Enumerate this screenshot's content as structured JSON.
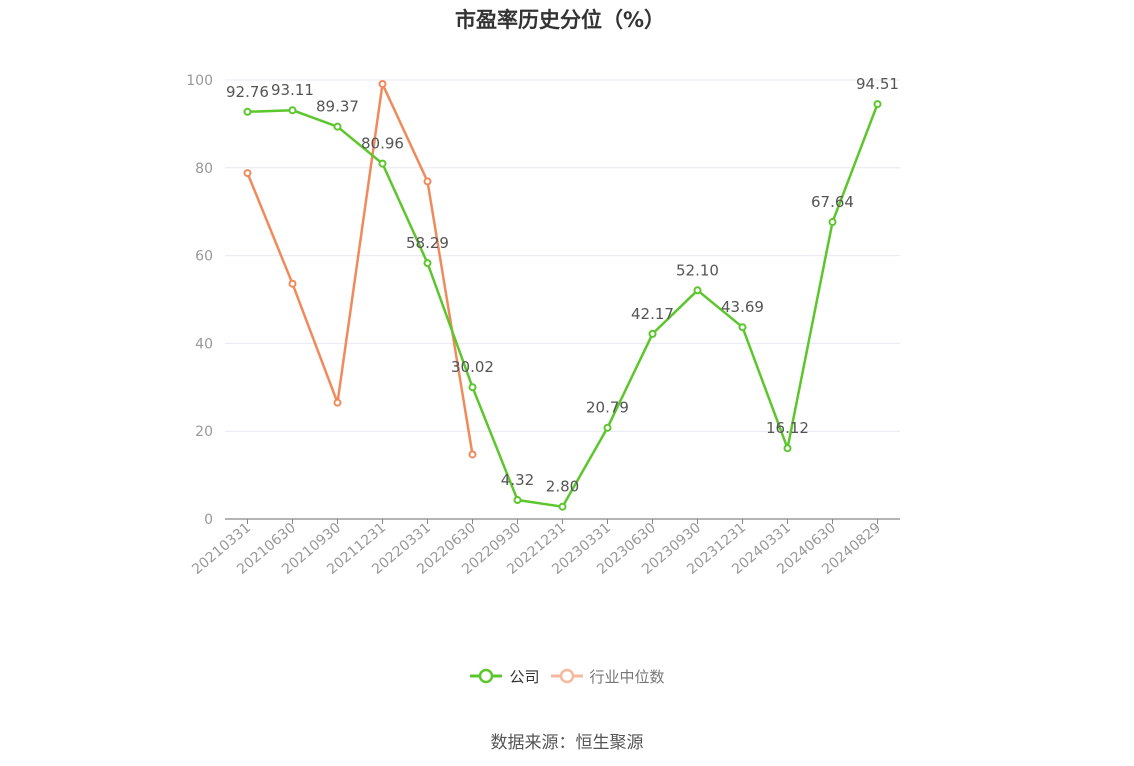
{
  "chart_data": {
    "type": "line",
    "title": "市盈率历史分位（%）",
    "xlabel": "",
    "ylabel": "",
    "ylim": [
      0,
      100
    ],
    "yticks": [
      0,
      20,
      40,
      60,
      80,
      100
    ],
    "grid": true,
    "legend_position": "bottom-center",
    "categories": [
      "20210331",
      "20210630",
      "20210930",
      "20211231",
      "20220331",
      "20220630",
      "20220930",
      "20221231",
      "20230331",
      "20230630",
      "20230930",
      "20231231",
      "20240331",
      "20240630",
      "20240829"
    ],
    "series": [
      {
        "name": "公司",
        "color": "#5cc62d",
        "show_labels": true,
        "values": [
          92.76,
          93.11,
          89.37,
          80.96,
          58.29,
          30.02,
          4.32,
          2.8,
          20.79,
          42.17,
          52.1,
          43.69,
          16.12,
          67.64,
          94.51
        ],
        "labels": [
          "92.76",
          "93.11",
          "89.37",
          "80.96",
          "58.29",
          "30.02",
          "4.32",
          "2.80",
          "20.79",
          "42.17",
          "52.10",
          "43.69",
          "16.12",
          "67.64",
          "94.51"
        ]
      },
      {
        "name": "行业中位数",
        "color": "#f08a5a",
        "show_labels": false,
        "values": [
          78.8,
          53.6,
          26.5,
          99.1,
          76.9,
          14.7,
          null,
          null,
          null,
          null,
          null,
          null,
          null,
          null,
          null
        ]
      }
    ]
  },
  "legend": {
    "items": [
      {
        "label": "公司",
        "color": "#5cc62d",
        "text_color": "#333333",
        "marker_fill": "#ffffff"
      },
      {
        "label": "行业中位数",
        "color": "#f6b99d",
        "text_color": "#777777",
        "marker_fill": "#ffffff"
      }
    ]
  },
  "source": "数据来源：恒生聚源"
}
